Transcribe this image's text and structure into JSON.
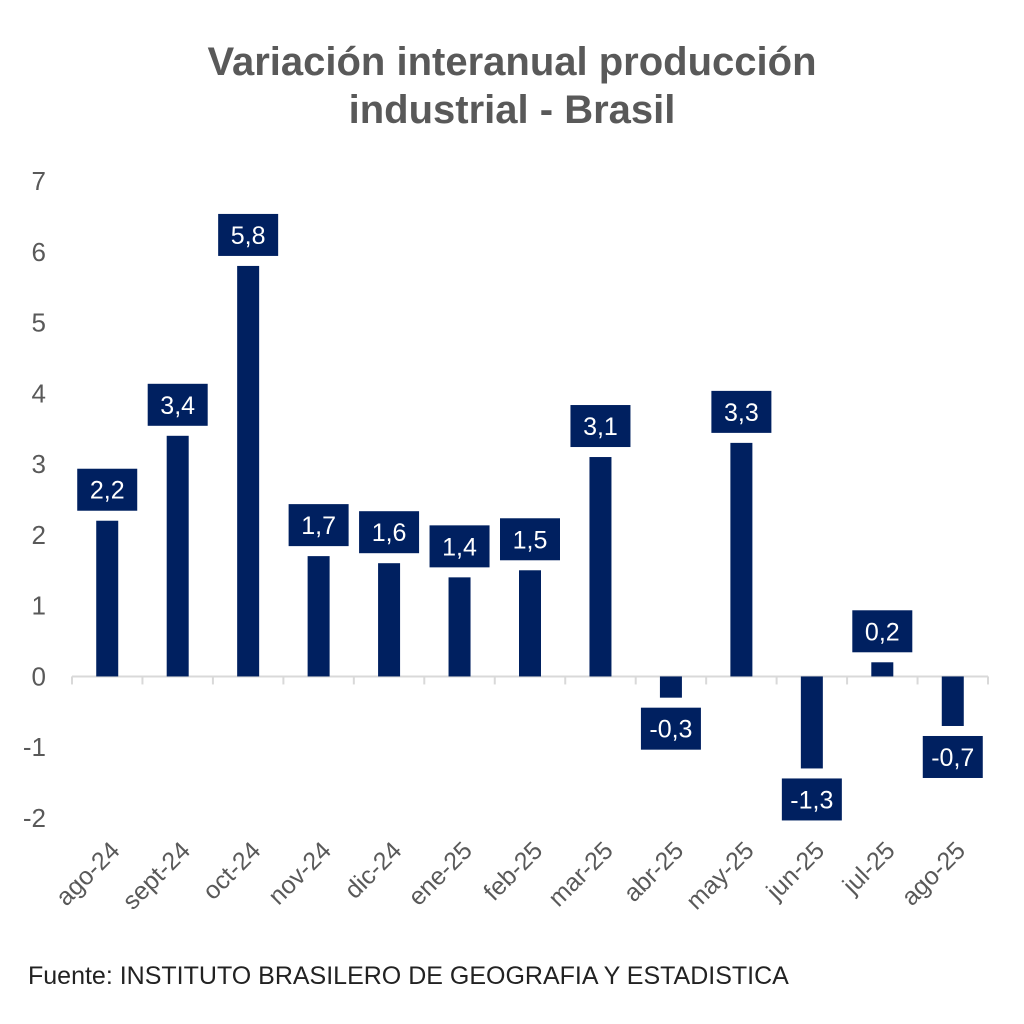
{
  "chart_data": {
    "type": "bar",
    "title_line1": "Variación interanual producción",
    "title_line2": "industrial - Brasil",
    "categories": [
      "ago-24",
      "sept-24",
      "oct-24",
      "nov-24",
      "dic-24",
      "ene-25",
      "feb-25",
      "mar-25",
      "abr-25",
      "may-25",
      "jun-25",
      "jul-25",
      "ago-25"
    ],
    "values": [
      2.2,
      3.4,
      5.8,
      1.7,
      1.6,
      1.4,
      1.5,
      3.1,
      -0.3,
      3.3,
      -1.3,
      0.2,
      -0.7
    ],
    "labels": [
      "2,2",
      "3,4",
      "5,8",
      "1,7",
      "1,6",
      "1,4",
      "1,5",
      "3,1",
      "-0,3",
      "3,3",
      "-1,3",
      "0,2",
      "-0,7"
    ],
    "ylim": [
      -2,
      7
    ],
    "yticks": [
      "-2",
      "-1",
      "0",
      "1",
      "2",
      "3",
      "4",
      "5",
      "6",
      "7"
    ],
    "bar_color": "#002060",
    "grid": false,
    "source": "Fuente: INSTITUTO BRASILERO DE GEOGRAFIA Y ESTADISTICA"
  }
}
